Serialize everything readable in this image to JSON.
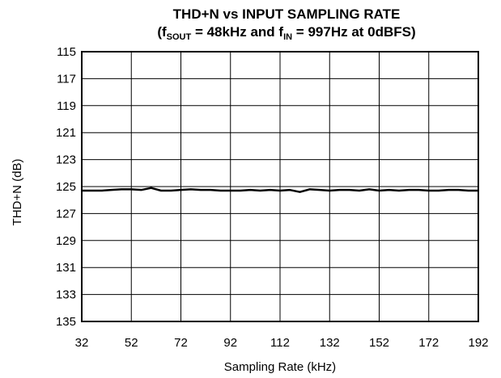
{
  "chart_data": {
    "type": "line",
    "title": "THD+N vs INPUT SAMPLING RATE",
    "subtitle": {
      "open": "(f",
      "sub1": "SOUT",
      "mid": " = 48kHz and f",
      "sub2": "IN",
      "close": " = 997Hz at 0dBFS)"
    },
    "xlabel": "Sampling Rate (kHz)",
    "ylabel": "THD+N (dB)",
    "xlim": [
      32,
      192
    ],
    "ylim": [
      135,
      115
    ],
    "y_inverted": true,
    "grid": true,
    "x_ticks": [
      32,
      52,
      72,
      92,
      112,
      132,
      152,
      172,
      192
    ],
    "y_ticks": [
      115,
      117,
      119,
      121,
      123,
      125,
      127,
      129,
      131,
      133,
      135
    ],
    "x_tick_labels": [
      "32",
      "52",
      "72",
      "92",
      "112",
      "132",
      "152",
      "172",
      "192"
    ],
    "y_tick_labels": [
      "115",
      "117",
      "119",
      "121",
      "123",
      "125",
      "127",
      "129",
      "131",
      "133",
      "135"
    ],
    "series": [
      {
        "x": [
          32,
          36,
          40,
          44,
          48,
          52,
          56,
          60,
          64,
          68,
          72,
          76,
          80,
          84,
          88,
          92,
          96,
          100,
          104,
          108,
          112,
          116,
          120,
          124,
          128,
          132,
          136,
          140,
          144,
          148,
          152,
          156,
          160,
          164,
          168,
          172,
          176,
          180,
          184,
          188,
          192
        ],
        "y": [
          125.3,
          125.3,
          125.3,
          125.25,
          125.2,
          125.2,
          125.25,
          125.1,
          125.3,
          125.3,
          125.25,
          125.2,
          125.25,
          125.25,
          125.3,
          125.3,
          125.3,
          125.25,
          125.3,
          125.25,
          125.3,
          125.25,
          125.4,
          125.2,
          125.25,
          125.3,
          125.25,
          125.25,
          125.3,
          125.2,
          125.3,
          125.25,
          125.3,
          125.25,
          125.25,
          125.3,
          125.3,
          125.25,
          125.25,
          125.3,
          125.3
        ],
        "color": "#000000"
      }
    ]
  }
}
